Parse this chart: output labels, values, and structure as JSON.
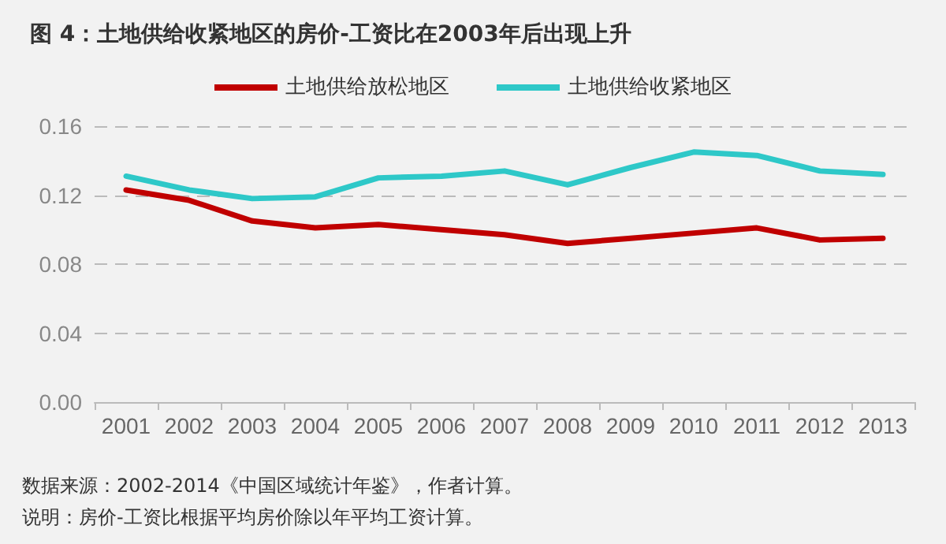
{
  "chart_data": {
    "type": "line",
    "title": "图 4：土地供给收紧地区的房价-工资比在2003年后出现上升",
    "categories": [
      "2001",
      "2002",
      "2003",
      "2004",
      "2005",
      "2006",
      "2007",
      "2008",
      "2009",
      "2010",
      "2011",
      "2012",
      "2013"
    ],
    "series": [
      {
        "name": "土地供给放松地区",
        "color": "#c00000",
        "values": [
          0.123,
          0.117,
          0.105,
          0.101,
          0.103,
          0.1,
          0.097,
          0.092,
          0.095,
          0.098,
          0.101,
          0.094,
          0.095
        ]
      },
      {
        "name": "土地供给收紧地区",
        "color": "#2ec8c8",
        "values": [
          0.131,
          0.123,
          0.118,
          0.119,
          0.13,
          0.131,
          0.134,
          0.126,
          0.136,
          0.145,
          0.143,
          0.134,
          0.132
        ]
      }
    ],
    "ylim": [
      0,
      0.16
    ],
    "yticks": [
      {
        "value": 0,
        "label": "0.00"
      },
      {
        "value": 0.04,
        "label": "0.04"
      },
      {
        "value": 0.08,
        "label": "0.08"
      },
      {
        "value": 0.12,
        "label": "0.12"
      },
      {
        "value": 0.16,
        "label": "0.16"
      }
    ],
    "grid": "y",
    "legend": "top",
    "marker": "none",
    "line_style": "solid",
    "annotations": [
      "数据来源：2002-2014《中国区域统计年鉴》，作者计算。",
      "说明：房价-工资比根据平均房价除以年平均工资计算。"
    ]
  }
}
